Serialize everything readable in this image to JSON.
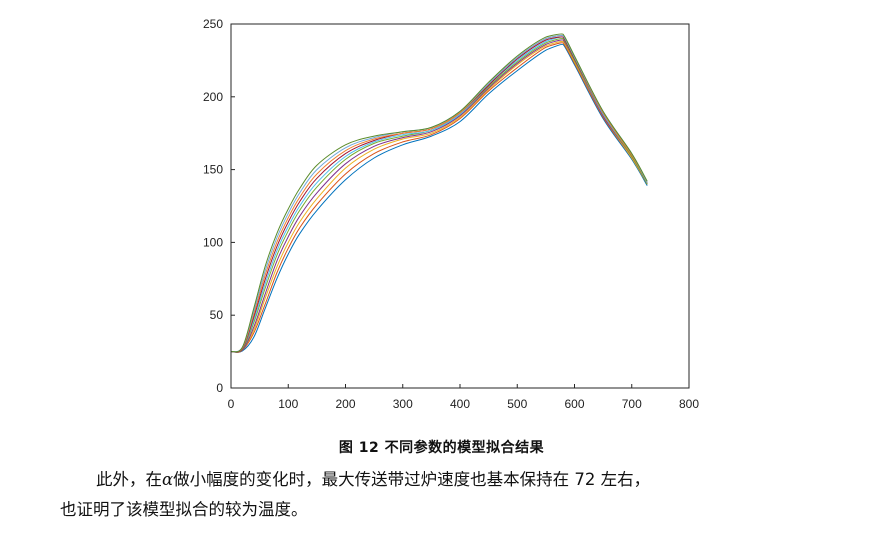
{
  "figure": {
    "caption": "图 12 不同参数的模型拟合结果"
  },
  "paragraph": {
    "line1_before": "此外，在",
    "symbol": "α",
    "line1_after": "做小幅度的变化时，最大传送带过炉速度也基本保持在 72 左右，",
    "line2": "也证明了该模型拟合的较为温度。"
  },
  "chart_data": {
    "type": "line",
    "title": "",
    "xlabel": "",
    "ylabel": "",
    "xlim": [
      0,
      800
    ],
    "ylim": [
      0,
      250
    ],
    "xticks": [
      0,
      100,
      200,
      300,
      400,
      500,
      600,
      700,
      800
    ],
    "yticks": [
      0,
      50,
      100,
      150,
      200,
      250
    ],
    "grid": false,
    "legend": "none",
    "x": [
      0,
      20,
      40,
      60,
      80,
      100,
      120,
      150,
      200,
      250,
      300,
      350,
      400,
      450,
      500,
      550,
      580,
      600,
      650,
      700,
      727
    ],
    "series": [
      {
        "color": "#0072bd",
        "values": [
          25,
          25.5,
          35,
          55,
          75,
          92,
          106,
          122,
          143,
          158,
          167,
          173,
          183,
          202,
          218,
          232,
          236,
          222,
          185,
          157,
          139
        ]
      },
      {
        "color": "#d95319",
        "values": [
          25,
          26,
          38,
          58,
          79,
          96,
          110,
          126,
          147,
          161,
          169,
          174,
          185,
          204,
          220,
          234,
          237,
          223,
          186,
          158,
          140
        ]
      },
      {
        "color": "#edb120",
        "values": [
          25,
          26,
          40,
          62,
          83,
          100,
          114,
          130,
          151,
          164,
          171,
          175,
          186,
          205,
          222,
          235,
          238,
          224,
          187,
          158,
          140
        ]
      },
      {
        "color": "#7e2f8e",
        "values": [
          25,
          26,
          42,
          65,
          87,
          104,
          118,
          134,
          154,
          166,
          172,
          176,
          187,
          206,
          223,
          236,
          239,
          225,
          187,
          159,
          140
        ]
      },
      {
        "color": "#77ac30",
        "values": [
          25,
          26.5,
          45,
          69,
          91,
          108,
          122,
          138,
          157,
          168,
          173,
          177,
          188,
          207,
          224,
          237,
          240,
          225,
          188,
          159,
          140
        ]
      },
      {
        "color": "#4dbeee",
        "values": [
          25,
          27,
          47,
          72,
          94,
          111,
          125,
          141,
          159,
          169,
          174,
          177,
          188,
          208,
          225,
          238,
          241,
          226,
          188,
          160,
          141
        ]
      },
      {
        "color": "#a2142f",
        "values": [
          25,
          27,
          49,
          75,
          97,
          114,
          128,
          144,
          161,
          170,
          175,
          178,
          189,
          208,
          226,
          239,
          241,
          226,
          189,
          160,
          141
        ]
      },
      {
        "color": "#f08030",
        "values": [
          25,
          27.5,
          51,
          78,
          100,
          117,
          131,
          147,
          163,
          171,
          175,
          178,
          189,
          209,
          227,
          240,
          242,
          227,
          189,
          160,
          141
        ]
      },
      {
        "color": "#6fa8dc",
        "values": [
          25,
          28,
          53,
          81,
          103,
          120,
          134,
          150,
          165,
          172,
          176,
          179,
          190,
          209,
          227,
          240,
          242,
          227,
          190,
          161,
          141
        ]
      },
      {
        "color": "#5b8c2a",
        "values": [
          25,
          28,
          55,
          84,
          106,
          123,
          137,
          153,
          167,
          173,
          176,
          179,
          190,
          210,
          228,
          241,
          243,
          228,
          190,
          161,
          142
        ]
      }
    ]
  }
}
